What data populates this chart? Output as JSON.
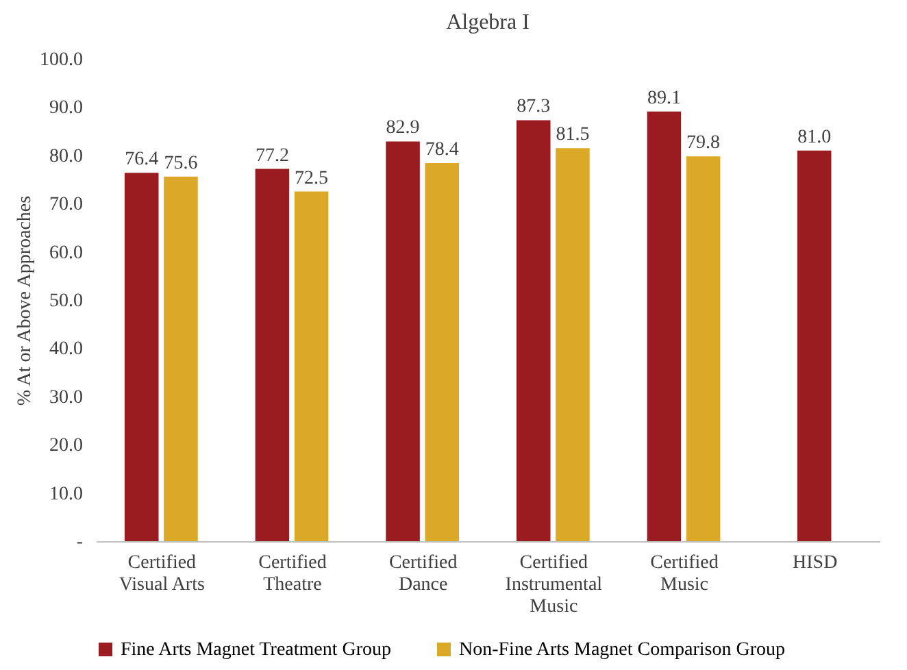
{
  "chart_data": {
    "type": "bar",
    "title": "Algebra  I",
    "ylabel": "% At or Above Approaches",
    "categories": [
      "Certified Visual Arts",
      "Certified Theatre",
      "Certified Dance",
      "Certified Instrumental Music",
      "Certified Music",
      "HISD"
    ],
    "series": [
      {
        "name": "Fine Arts Magnet Treatment Group",
        "color": "#9b1c20",
        "values": [
          76.4,
          77.2,
          82.9,
          87.3,
          89.1,
          null
        ],
        "value_labels": [
          "76.4",
          "77.2",
          "82.9",
          "87.3",
          "89.1",
          null
        ]
      },
      {
        "name": "Non-Fine Arts Magnet Comparison Group",
        "color": "#dba827",
        "values": [
          75.6,
          72.5,
          78.4,
          81.5,
          79.8,
          null
        ],
        "value_labels": [
          "75.6",
          "72.5",
          "78.4",
          "81.5",
          "79.8",
          null
        ]
      },
      {
        "color": "#9b1c20",
        "values": [
          null,
          null,
          null,
          null,
          null,
          81.0
        ],
        "value_labels": [
          null,
          null,
          null,
          null,
          null,
          "81.0"
        ]
      }
    ],
    "ylim": [
      0,
      100
    ],
    "yticks": [
      {
        "value": 0,
        "label": "-"
      },
      {
        "value": 10,
        "label": "10.0"
      },
      {
        "value": 20,
        "label": "20.0"
      },
      {
        "value": 30,
        "label": "30.0"
      },
      {
        "value": 40,
        "label": "40.0"
      },
      {
        "value": 50,
        "label": "50.0"
      },
      {
        "value": 60,
        "label": "60.0"
      },
      {
        "value": 70,
        "label": "70.0"
      },
      {
        "value": 80,
        "label": "80.0"
      },
      {
        "value": 90,
        "label": "90.0"
      },
      {
        "value": 100,
        "label": "100.0"
      }
    ],
    "legend": "bottom"
  }
}
